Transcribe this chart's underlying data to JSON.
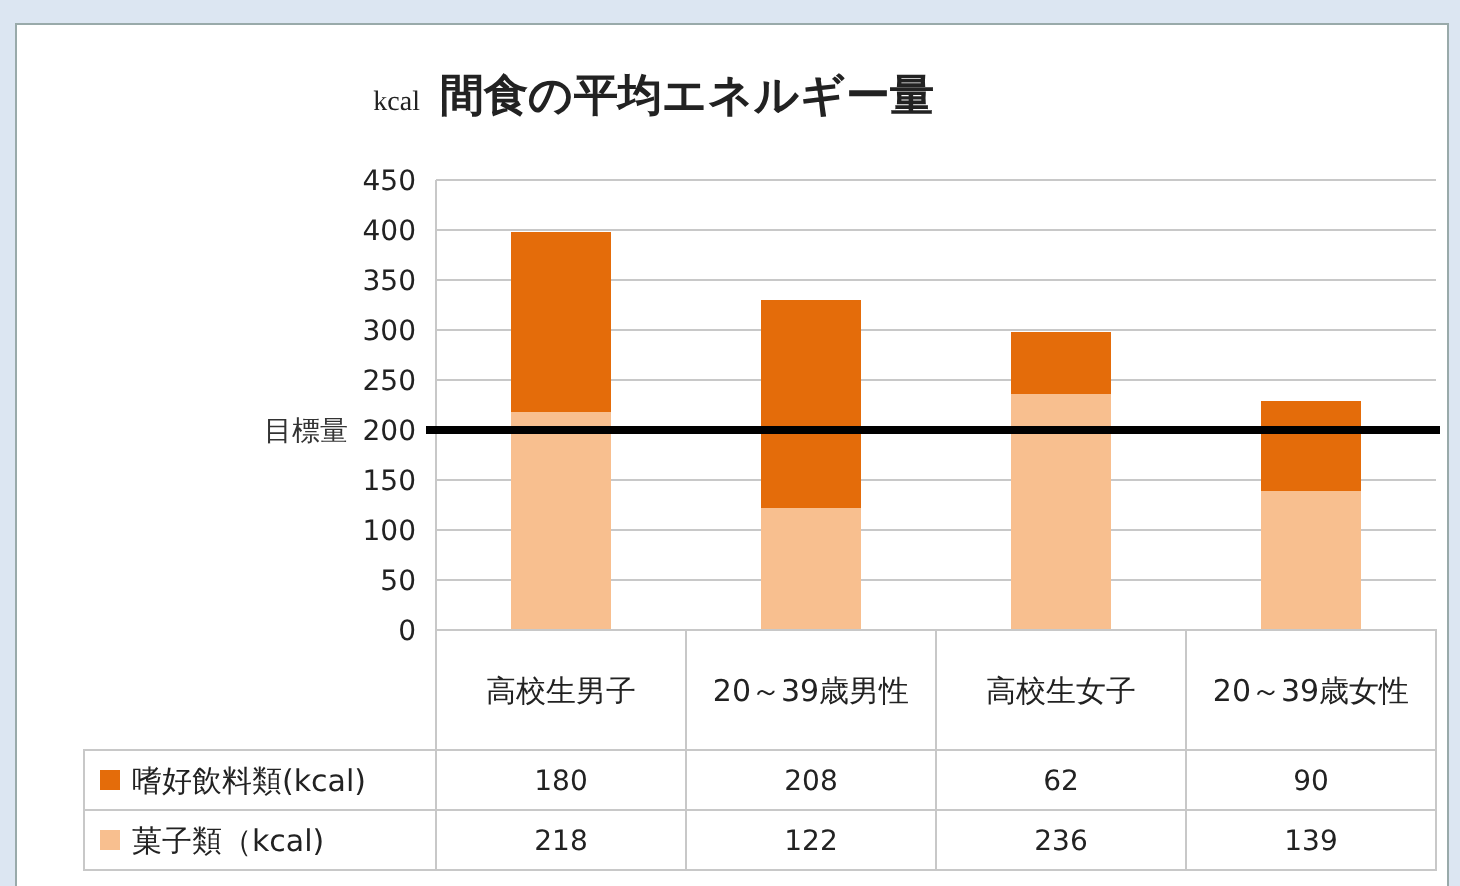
{
  "chart_data": {
    "type": "bar",
    "title": "間食の平均エネルギー量",
    "ylabel": "kcal",
    "categories": [
      "高校生男子",
      "20～39歳男性",
      "高校生女子",
      "20～39歳女性"
    ],
    "stacked": true,
    "series": [
      {
        "name": "菓子類（kcal)",
        "color": "#f8bf8f",
        "values": [
          218,
          122,
          236,
          139
        ]
      },
      {
        "name": "嗜好飲料類(kcal)",
        "color": "#e46c0a",
        "values": [
          180,
          208,
          62,
          90
        ]
      }
    ],
    "ylim": [
      0,
      450
    ],
    "yticks": [
      0,
      50,
      100,
      150,
      200,
      250,
      300,
      350,
      400,
      450
    ],
    "grid": "y",
    "ref_lines": [
      {
        "axis": "y",
        "value": 200,
        "label": "目標量",
        "color": "#000000"
      }
    ],
    "data_labels": true,
    "legend": "bottom"
  }
}
